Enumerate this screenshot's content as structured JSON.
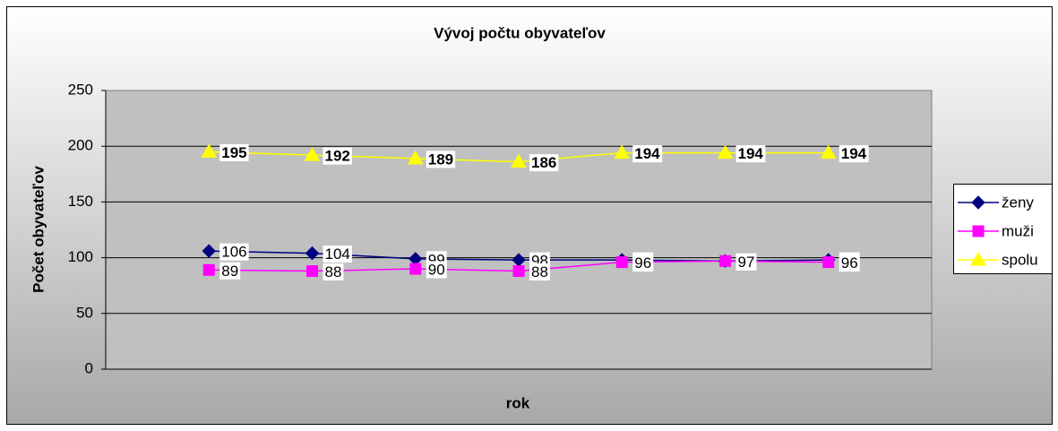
{
  "chart_data": {
    "type": "line",
    "title": "Vývoj počtu obyvateľov",
    "x_label": "rok",
    "y_label": "Počet obyvateľov",
    "categories": [
      null,
      null,
      null,
      null,
      null,
      null,
      null
    ],
    "series": [
      {
        "name": "ženy",
        "color": "#000080",
        "marker": "diamond",
        "values": [
          106,
          104,
          99,
          98,
          98,
          97,
          98
        ]
      },
      {
        "name": "muži",
        "color": "#ff00ff",
        "marker": "square",
        "values": [
          89,
          88,
          90,
          88,
          96,
          97,
          96
        ]
      },
      {
        "name": "spolu",
        "color": "#ffff00",
        "marker": "triangle",
        "values": [
          195,
          192,
          189,
          186,
          194,
          194,
          194
        ]
      }
    ],
    "ylim": [
      0,
      250
    ],
    "yticks": [
      0,
      50,
      100,
      150,
      200,
      250
    ],
    "grid": true,
    "legend": "right"
  }
}
